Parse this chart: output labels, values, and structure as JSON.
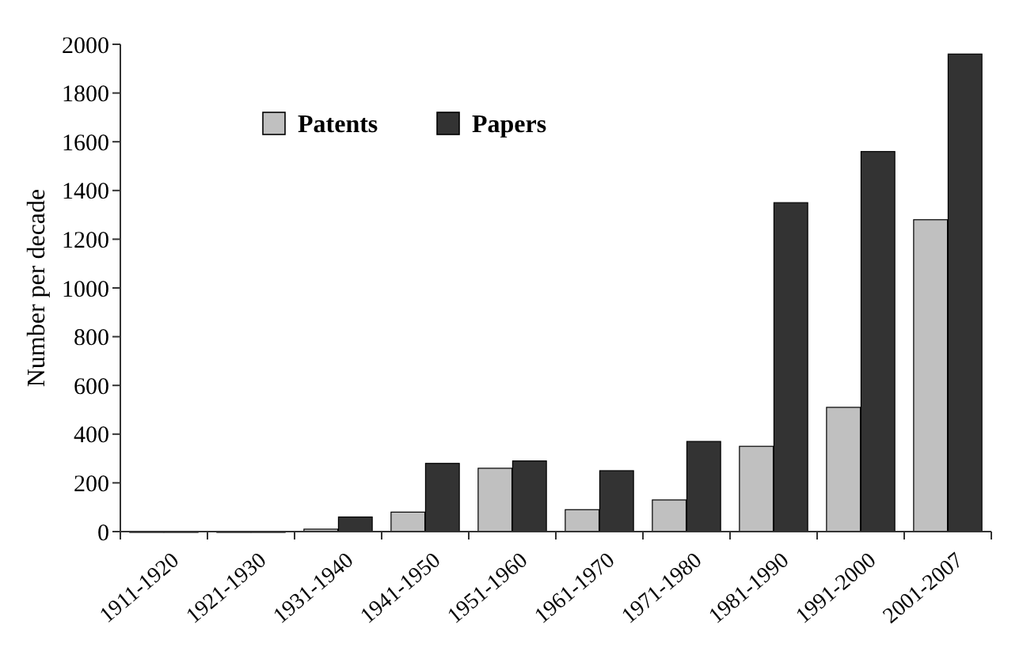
{
  "chart_data": {
    "type": "bar",
    "ylabel": "Number per decade",
    "categories": [
      "1911-1920",
      "1921-1930",
      "1931-1940",
      "1941-1950",
      "1951-1960",
      "1961-1970",
      "1971-1980",
      "1981-1990",
      "1991-2000",
      "2001-2007"
    ],
    "series": [
      {
        "name": "Patents",
        "color": "#c0c0c0",
        "values": [
          0,
          0,
          10,
          80,
          260,
          90,
          130,
          350,
          510,
          1280
        ]
      },
      {
        "name": "Papers",
        "color": "#333333",
        "values": [
          0,
          0,
          60,
          280,
          290,
          250,
          370,
          1350,
          1560,
          1960
        ]
      }
    ],
    "ylim": [
      0,
      2000
    ],
    "yticks": [
      0,
      200,
      400,
      600,
      800,
      1000,
      1200,
      1400,
      1600,
      1800,
      2000
    ],
    "legend": "top left",
    "grid": false
  }
}
